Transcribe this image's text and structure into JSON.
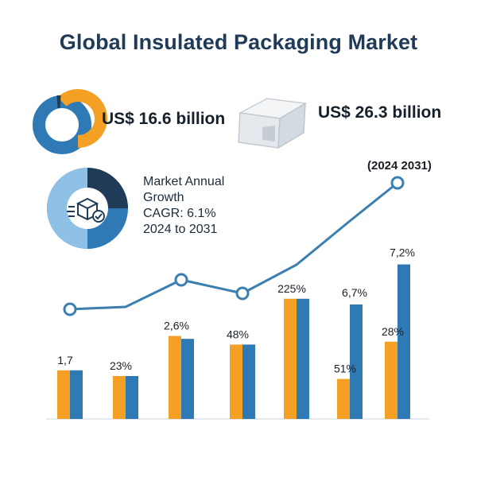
{
  "title": "Global Insulated Packaging Market",
  "stat_value_1": "US$ 16.6 billion",
  "stat_value_2": "US$ 26.3 billion",
  "growth": {
    "line1": "Market Annual",
    "line2": "Growth",
    "line3": "CAGR: 6.1%",
    "line4": "2024 to 2031"
  },
  "period_label": "(2024 2031)",
  "colors": {
    "orange": "#f4a025",
    "blue": "#2f7ab5",
    "navy": "#1f3b57",
    "light_blue": "#6aaad8",
    "line": "#3b7fb0"
  },
  "icons": {
    "package": "box-with-check-icon",
    "insulated_box": "insulated-box-icon"
  },
  "chart_data": {
    "type": "bar",
    "bar_groups": [
      {
        "orange": 1.7,
        "blue": 1.7,
        "label": "1,7"
      },
      {
        "orange": 1.5,
        "blue": 1.5,
        "label": "23%"
      },
      {
        "orange": 2.9,
        "blue": 2.8,
        "label": "2,6%"
      },
      {
        "orange": 2.6,
        "blue": 2.6,
        "label": "48%"
      },
      {
        "orange": 4.2,
        "blue": 4.2,
        "label": "225%"
      },
      {
        "orange": 1.4,
        "blue": 4.0,
        "label": "51%",
        "label_blue": "6,7%"
      },
      {
        "orange": 2.7,
        "blue": 5.4,
        "label": "28%",
        "label_blue": "7,2%"
      }
    ],
    "line": [
      1.8,
      2.2,
      2.6,
      2.4,
      3.9,
      5.3,
      6.8
    ],
    "ylim": [
      0,
      7
    ]
  }
}
